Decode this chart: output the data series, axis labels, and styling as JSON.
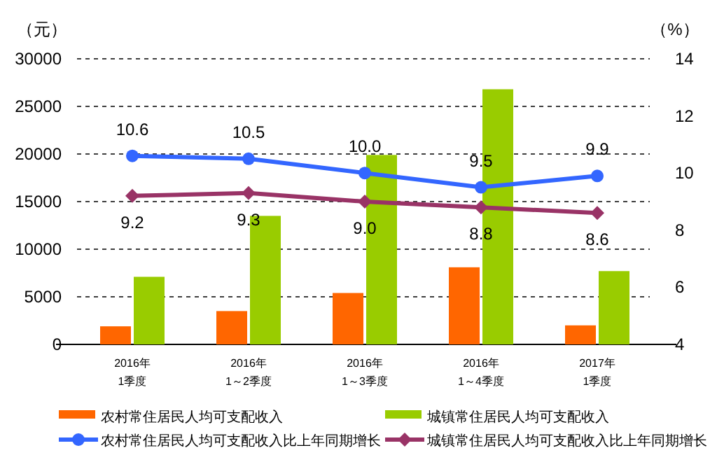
{
  "chart_data": {
    "type": "bar",
    "ylabel": "（元）",
    "y2label": "（%）",
    "categories": [
      "2016年\n1季度",
      "2016年\n1～2季度",
      "2016年\n1～3季度",
      "2016年\n1～4季度",
      "2017年\n1季度"
    ],
    "series": [
      {
        "name": "农村常住居民人均可支配收入",
        "color": "#ff6600",
        "values": [
          1900,
          3500,
          5400,
          8100,
          2000
        ]
      },
      {
        "name": "城镇常住居民人均可支配收入",
        "color": "#99cc00",
        "values": [
          7100,
          13500,
          19900,
          26800,
          7700
        ]
      },
      {
        "name": "农村常住居民人均可支配收入比上年同期增长",
        "type": "line",
        "axis": "y2",
        "marker": "circle",
        "color": "#3366ff",
        "values": [
          10.6,
          10.5,
          10.0,
          9.5,
          9.9
        ],
        "value_labels": [
          "10.6",
          "10.5",
          "10.0",
          "9.5",
          "9.9"
        ]
      },
      {
        "name": "城镇常住居民人均可支配收入比上年同期增长",
        "type": "line",
        "axis": "y2",
        "marker": "diamond",
        "color": "#993366",
        "values": [
          9.2,
          9.3,
          9.0,
          8.8,
          8.6
        ],
        "value_labels": [
          "9.2",
          "9.3",
          "9.0",
          "8.8",
          "8.6"
        ]
      }
    ],
    "ylim": [
      0,
      30000
    ],
    "yticks": [
      0,
      5000,
      10000,
      15000,
      20000,
      25000,
      30000
    ],
    "y2lim": [
      4,
      14
    ],
    "y2ticks": [
      4,
      6,
      8,
      10,
      12,
      14
    ],
    "grid": "y",
    "legend": "bottom",
    "line_style": "solid"
  }
}
